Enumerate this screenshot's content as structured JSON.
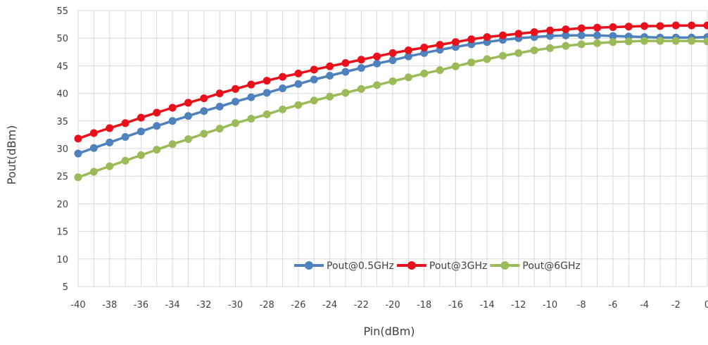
{
  "chart_data": {
    "type": "line",
    "title": "",
    "xlabel": "Pin(dBm)",
    "ylabel": "Pout(dBm)",
    "xlim": [
      -40,
      0
    ],
    "ylim": [
      5,
      55
    ],
    "x_ticks": [
      "-40",
      "-38",
      "-36",
      "-34",
      "-32",
      "-30",
      "-28",
      "-26",
      "-24",
      "-22",
      "-20",
      "-18",
      "-16",
      "-14",
      "-12",
      "-10",
      "-8",
      "-6",
      "-4",
      "-2",
      "0"
    ],
    "y_ticks": [
      "5",
      "10",
      "15",
      "20",
      "25",
      "30",
      "35",
      "40",
      "45",
      "50",
      "55"
    ],
    "grid": true,
    "legend_position": "bottom-right",
    "x": [
      -40,
      -39,
      -38,
      -37,
      -36,
      -35,
      -34,
      -33,
      -32,
      -31,
      -30,
      -29,
      -28,
      -27,
      -26,
      -25,
      -24,
      -23,
      -22,
      -21,
      -20,
      -19,
      -18,
      -17,
      -16,
      -15,
      -14,
      -13,
      -12,
      -11,
      -10,
      -9,
      -8,
      -7,
      -6,
      -5,
      -4,
      -3,
      -2,
      -1,
      0
    ],
    "series": [
      {
        "name": "Pout@0.5GHz",
        "color": "#4f81bd",
        "values": [
          29.1,
          30.1,
          31.1,
          32.1,
          33.1,
          34.1,
          35.0,
          35.9,
          36.8,
          37.6,
          38.5,
          39.3,
          40.1,
          40.9,
          41.7,
          42.5,
          43.2,
          43.9,
          44.6,
          45.4,
          46.0,
          46.7,
          47.3,
          47.9,
          48.4,
          48.9,
          49.3,
          49.7,
          50.0,
          50.2,
          50.4,
          50.5,
          50.5,
          50.5,
          50.4,
          50.3,
          50.2,
          50.1,
          50.1,
          50.1,
          50.2
        ]
      },
      {
        "name": "Pout@3GHz",
        "color": "#e8101a",
        "values": [
          31.8,
          32.8,
          33.7,
          34.6,
          35.6,
          36.5,
          37.4,
          38.3,
          39.1,
          40.0,
          40.8,
          41.6,
          42.3,
          43.0,
          43.6,
          44.3,
          44.9,
          45.5,
          46.1,
          46.7,
          47.3,
          47.8,
          48.3,
          48.8,
          49.3,
          49.8,
          50.2,
          50.5,
          50.8,
          51.1,
          51.4,
          51.6,
          51.8,
          51.9,
          52.0,
          52.1,
          52.2,
          52.2,
          52.3,
          52.3,
          52.3
        ]
      },
      {
        "name": "Pout@6GHz",
        "color": "#9bbb59",
        "values": [
          24.8,
          25.8,
          26.8,
          27.8,
          28.8,
          29.8,
          30.8,
          31.7,
          32.7,
          33.6,
          34.6,
          35.4,
          36.2,
          37.1,
          37.9,
          38.7,
          39.4,
          40.1,
          40.8,
          41.5,
          42.2,
          42.9,
          43.6,
          44.2,
          44.9,
          45.6,
          46.2,
          46.8,
          47.3,
          47.8,
          48.2,
          48.6,
          48.9,
          49.1,
          49.3,
          49.4,
          49.5,
          49.5,
          49.5,
          49.5,
          49.4
        ]
      }
    ]
  }
}
